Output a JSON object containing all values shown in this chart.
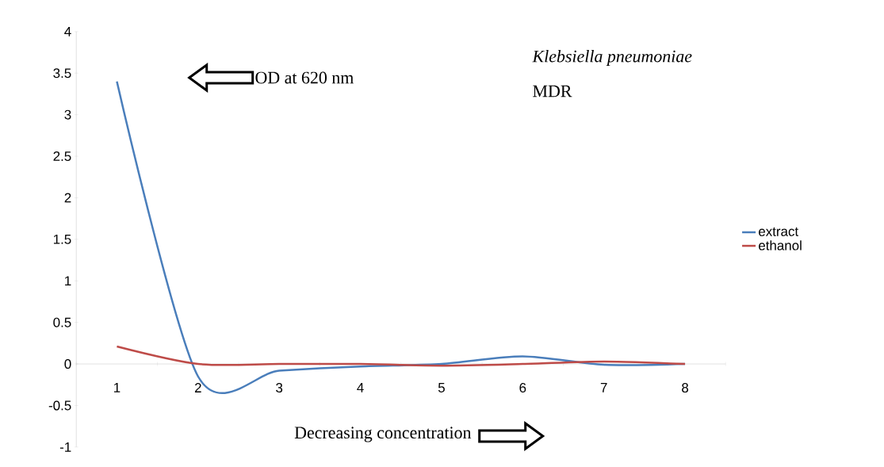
{
  "chart_data": {
    "type": "line",
    "title": "Klebsiella pneumoniae",
    "subtitle": "MDR",
    "xlabel": "Decreasing concentration",
    "ylabel": "OD at 620 nm",
    "categories": [
      "1",
      "2",
      "3",
      "4",
      "5",
      "6",
      "7",
      "8"
    ],
    "series": [
      {
        "name": "extract",
        "color": "#4a7ebb",
        "values": [
          3.4,
          -0.15,
          -0.08,
          -0.03,
          0,
          0.09,
          -0.01,
          0
        ]
      },
      {
        "name": "ethanol",
        "color": "#be4b48",
        "values": [
          0.21,
          0,
          0,
          0,
          -0.02,
          0,
          0.03,
          0
        ]
      }
    ],
    "ylim": [
      -1,
      4
    ],
    "yticks": [
      {
        "value": -1,
        "label": "-1"
      },
      {
        "value": -0.5,
        "label": "-0.5"
      },
      0,
      0.5,
      1,
      1.5,
      2,
      2.5,
      3,
      3.5,
      4
    ],
    "grid": false,
    "legend": "right",
    "marker": "none",
    "line_style": "solid"
  }
}
